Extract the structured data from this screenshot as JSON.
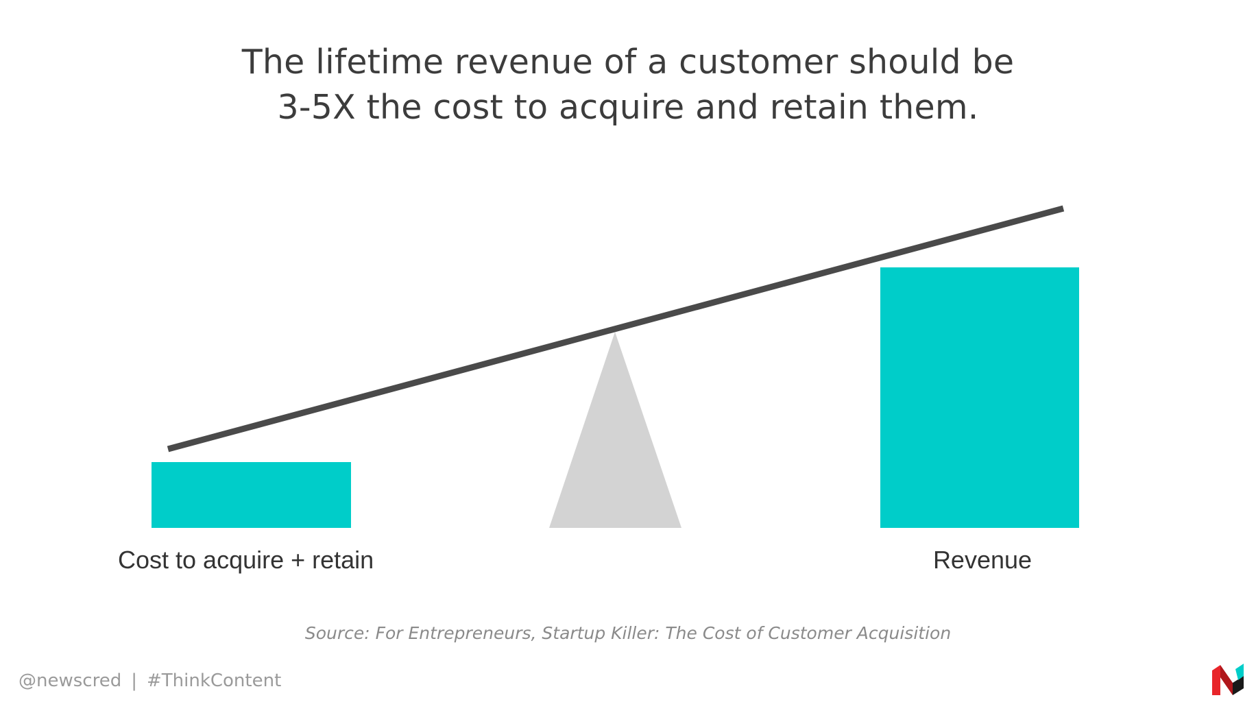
{
  "title": {
    "line1": "The lifetime revenue of a customer should be",
    "line2": "3-5X the cost to acquire and retain them."
  },
  "diagram": {
    "left_label": "Cost to acquire + retain",
    "right_label": "Revenue",
    "colors": {
      "box": "#00cdc9",
      "beam": "#4a4a4a",
      "fulcrum": "#d3d3d3"
    }
  },
  "source": "Source: For Entrepreneurs, Startup Killer: The Cost of Customer Acquisition",
  "footer": {
    "handle": "@newscred",
    "separator": "|",
    "hashtag": "#ThinkContent",
    "logo_icon": "newscred-logo-icon"
  }
}
